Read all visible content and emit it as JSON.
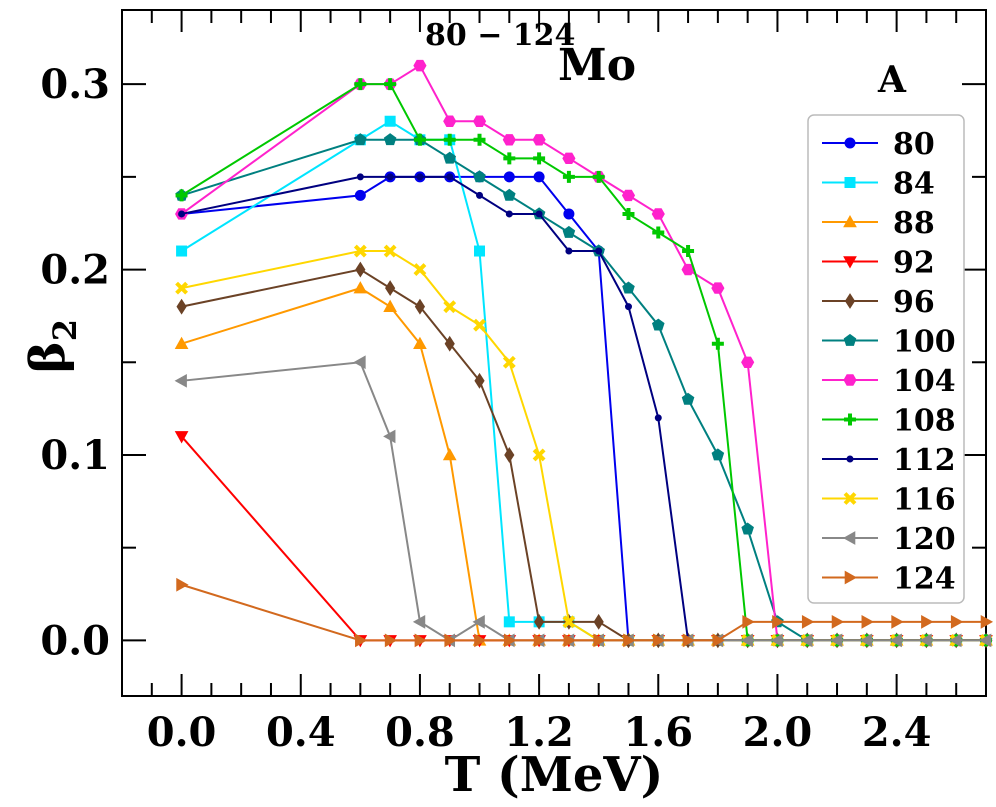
{
  "chart_data": {
    "type": "line",
    "title_superscript": "80 − 124",
    "title_main": "Mo",
    "xlabel": "T (MeV)",
    "ylabel_main": "β",
    "ylabel_sub": "2",
    "xlim": [
      -0.2,
      2.7
    ],
    "ylim": [
      -0.03,
      0.34
    ],
    "xticks": [
      0.0,
      0.4,
      0.8,
      1.2,
      1.6,
      2.0,
      2.4
    ],
    "xtick_labels": [
      "0.0",
      "0.4",
      "0.8",
      "1.2",
      "1.6",
      "2.0",
      "2.4"
    ],
    "yticks": [
      0.0,
      0.1,
      0.2,
      0.3
    ],
    "ytick_labels": [
      "0.0",
      "0.1",
      "0.2",
      "0.3"
    ],
    "legend_title": "A",
    "legend_position": "right",
    "series": [
      {
        "name": "80",
        "color": "#0000ee",
        "marker": "circle",
        "x": [
          0.0,
          0.6,
          0.7,
          0.8,
          0.9,
          1.0,
          1.1,
          1.2,
          1.3,
          1.4,
          1.5,
          1.6,
          1.7,
          1.8,
          1.9,
          2.0,
          2.1,
          2.2,
          2.3,
          2.4,
          2.5,
          2.6,
          2.7
        ],
        "y": [
          0.23,
          0.24,
          0.25,
          0.25,
          0.25,
          0.25,
          0.25,
          0.25,
          0.23,
          0.21,
          0.0,
          0.0,
          0.0,
          0.0,
          0.0,
          0.0,
          0.0,
          0.0,
          0.0,
          0.0,
          0.0,
          0.0,
          0.0
        ]
      },
      {
        "name": "84",
        "color": "#00e5ff",
        "marker": "square",
        "x": [
          0.0,
          0.6,
          0.7,
          0.8,
          0.9,
          1.0,
          1.1,
          1.2,
          1.3,
          1.4,
          1.5,
          1.6,
          1.7,
          1.8,
          1.9,
          2.0,
          2.1,
          2.2,
          2.3,
          2.4,
          2.5,
          2.6,
          2.7
        ],
        "y": [
          0.21,
          0.27,
          0.28,
          0.27,
          0.27,
          0.21,
          0.01,
          0.01,
          0.01,
          0.0,
          0.0,
          0.0,
          0.0,
          0.0,
          0.0,
          0.0,
          0.0,
          0.0,
          0.0,
          0.0,
          0.0,
          0.0,
          0.0
        ]
      },
      {
        "name": "88",
        "color": "#ff9900",
        "marker": "triangle-up",
        "x": [
          0.0,
          0.6,
          0.7,
          0.8,
          0.9,
          1.0,
          1.1,
          1.2,
          1.3,
          1.4,
          1.5,
          1.6,
          1.7,
          1.8,
          1.9,
          2.0,
          2.1,
          2.2,
          2.3,
          2.4,
          2.5,
          2.6,
          2.7
        ],
        "y": [
          0.16,
          0.19,
          0.18,
          0.16,
          0.1,
          0.0,
          0.0,
          0.0,
          0.0,
          0.0,
          0.0,
          0.0,
          0.0,
          0.0,
          0.0,
          0.0,
          0.0,
          0.0,
          0.0,
          0.0,
          0.0,
          0.0,
          0.0
        ]
      },
      {
        "name": "92",
        "color": "#ff0000",
        "marker": "triangle-down",
        "x": [
          0.0,
          0.6,
          0.7,
          0.8,
          0.9,
          1.0,
          1.1,
          1.2,
          1.3,
          1.4,
          1.5,
          1.6,
          1.7,
          1.8,
          1.9,
          2.0,
          2.1,
          2.2,
          2.3,
          2.4,
          2.5,
          2.6,
          2.7
        ],
        "y": [
          0.11,
          0.0,
          0.0,
          0.0,
          0.0,
          0.0,
          0.0,
          0.0,
          0.0,
          0.0,
          0.0,
          0.0,
          0.0,
          0.0,
          0.0,
          0.0,
          0.0,
          0.0,
          0.0,
          0.0,
          0.0,
          0.0,
          0.0
        ]
      },
      {
        "name": "96",
        "color": "#6b4226",
        "marker": "diamond",
        "x": [
          0.0,
          0.6,
          0.7,
          0.8,
          0.9,
          1.0,
          1.1,
          1.2,
          1.3,
          1.4,
          1.5,
          1.6,
          1.7,
          1.8,
          1.9,
          2.0,
          2.1,
          2.2,
          2.3,
          2.4,
          2.5,
          2.6,
          2.7
        ],
        "y": [
          0.18,
          0.2,
          0.19,
          0.18,
          0.16,
          0.14,
          0.1,
          0.01,
          0.01,
          0.01,
          0.0,
          0.0,
          0.0,
          0.0,
          0.0,
          0.0,
          0.0,
          0.0,
          0.0,
          0.0,
          0.0,
          0.0,
          0.0
        ]
      },
      {
        "name": "100",
        "color": "#008080",
        "marker": "pentagon",
        "x": [
          0.0,
          0.6,
          0.7,
          0.8,
          0.9,
          1.0,
          1.1,
          1.2,
          1.3,
          1.4,
          1.5,
          1.6,
          1.7,
          1.8,
          1.9,
          2.0,
          2.1,
          2.2,
          2.3,
          2.4,
          2.5,
          2.6,
          2.7
        ],
        "y": [
          0.24,
          0.27,
          0.27,
          0.27,
          0.26,
          0.25,
          0.24,
          0.23,
          0.22,
          0.21,
          0.19,
          0.17,
          0.13,
          0.1,
          0.06,
          0.01,
          0.0,
          0.0,
          0.0,
          0.0,
          0.0,
          0.0,
          0.0
        ]
      },
      {
        "name": "104",
        "color": "#ff22cc",
        "marker": "hexagon",
        "x": [
          0.0,
          0.6,
          0.7,
          0.8,
          0.9,
          1.0,
          1.1,
          1.2,
          1.3,
          1.4,
          1.5,
          1.6,
          1.7,
          1.8,
          1.9,
          2.0,
          2.1,
          2.2,
          2.3,
          2.4,
          2.5,
          2.6,
          2.7
        ],
        "y": [
          0.23,
          0.3,
          0.3,
          0.31,
          0.28,
          0.28,
          0.27,
          0.27,
          0.26,
          0.25,
          0.24,
          0.23,
          0.2,
          0.19,
          0.15,
          0.0,
          0.0,
          0.0,
          0.0,
          0.0,
          0.0,
          0.0,
          0.0
        ]
      },
      {
        "name": "108",
        "color": "#00c800",
        "marker": "plus",
        "x": [
          0.0,
          0.6,
          0.7,
          0.8,
          0.9,
          1.0,
          1.1,
          1.2,
          1.3,
          1.4,
          1.5,
          1.6,
          1.7,
          1.8,
          1.9,
          2.0,
          2.1,
          2.2,
          2.3,
          2.4,
          2.5,
          2.6,
          2.7
        ],
        "y": [
          0.24,
          0.3,
          0.3,
          0.27,
          0.27,
          0.27,
          0.26,
          0.26,
          0.25,
          0.25,
          0.23,
          0.22,
          0.21,
          0.16,
          0.0,
          0.0,
          0.0,
          0.0,
          0.0,
          0.0,
          0.0,
          0.0,
          0.0
        ]
      },
      {
        "name": "112",
        "color": "#000080",
        "marker": "dot",
        "x": [
          0.0,
          0.6,
          0.7,
          0.8,
          0.9,
          1.0,
          1.1,
          1.2,
          1.3,
          1.4,
          1.5,
          1.6,
          1.7,
          1.8,
          1.9,
          2.0,
          2.1,
          2.2,
          2.3,
          2.4,
          2.5,
          2.6,
          2.7
        ],
        "y": [
          0.23,
          0.25,
          0.25,
          0.25,
          0.25,
          0.24,
          0.23,
          0.23,
          0.21,
          0.21,
          0.18,
          0.12,
          0.0,
          0.0,
          0.0,
          0.0,
          0.0,
          0.0,
          0.0,
          0.0,
          0.0,
          0.0,
          0.0
        ]
      },
      {
        "name": "116",
        "color": "#ffd700",
        "marker": "x",
        "x": [
          0.0,
          0.6,
          0.7,
          0.8,
          0.9,
          1.0,
          1.1,
          1.2,
          1.3,
          1.4,
          1.5,
          1.6,
          1.7,
          1.8,
          1.9,
          2.0,
          2.1,
          2.2,
          2.3,
          2.4,
          2.5,
          2.6,
          2.7
        ],
        "y": [
          0.19,
          0.21,
          0.21,
          0.2,
          0.18,
          0.17,
          0.15,
          0.1,
          0.01,
          0.0,
          0.0,
          0.0,
          0.0,
          0.0,
          0.0,
          0.0,
          0.0,
          0.0,
          0.0,
          0.0,
          0.0,
          0.0,
          0.0
        ]
      },
      {
        "name": "120",
        "color": "#888888",
        "marker": "triangle-left",
        "x": [
          0.0,
          0.6,
          0.7,
          0.8,
          0.9,
          1.0,
          1.1,
          1.2,
          1.3,
          1.4,
          1.5,
          1.6,
          1.7,
          1.8,
          1.9,
          2.0,
          2.1,
          2.2,
          2.3,
          2.4,
          2.5,
          2.6,
          2.7
        ],
        "y": [
          0.14,
          0.15,
          0.11,
          0.01,
          0.0,
          0.01,
          0.0,
          0.0,
          0.0,
          0.0,
          0.0,
          0.0,
          0.0,
          0.0,
          0.0,
          0.0,
          0.0,
          0.0,
          0.0,
          0.0,
          0.0,
          0.0,
          0.0
        ]
      },
      {
        "name": "124",
        "color": "#d2691e",
        "marker": "triangle-right",
        "x": [
          0.0,
          0.6,
          0.7,
          0.8,
          0.9,
          1.0,
          1.1,
          1.2,
          1.3,
          1.4,
          1.5,
          1.6,
          1.7,
          1.8,
          1.9,
          2.0,
          2.1,
          2.2,
          2.3,
          2.4,
          2.5,
          2.6,
          2.7
        ],
        "y": [
          0.03,
          0.0,
          0.0,
          0.0,
          0.0,
          0.0,
          0.0,
          0.0,
          0.0,
          0.0,
          0.0,
          0.0,
          0.0,
          0.0,
          0.01,
          0.01,
          0.01,
          0.01,
          0.01,
          0.01,
          0.01,
          0.01,
          0.01
        ]
      }
    ]
  }
}
